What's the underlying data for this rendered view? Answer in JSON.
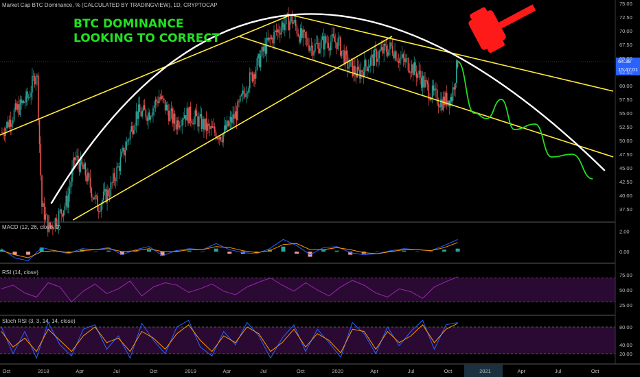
{
  "header": {
    "main": "Market Cap BTC Dominance, % (CALCULATED BY TRADINGVIEW), 1D, CRYPTOCAP",
    "macd": "MACD (12, 26, close, 9)",
    "rsi": "RSI (14, close)",
    "stoch": "Stoch RSI (3, 3, 14, 14, close)"
  },
  "annotation": {
    "line1": "BTC DOMINANCE",
    "line2": "LOOKING TO CORRECT"
  },
  "price_tag": {
    "value": "64.38",
    "countdown": "15:47:01",
    "color": "#2962ff"
  },
  "colors": {
    "up": "#26a69a",
    "down": "#ef5350",
    "trend": "#ffeb3b",
    "arc": "#ffffff",
    "projection": "#22dd22",
    "gavel": "#ff1a1a",
    "rsi": "#9c27b0"
  },
  "chart_data": [
    {
      "type": "candlestick",
      "title": "Market Cap BTC Dominance, % (CALCULATED BY TRADINGVIEW), 1D, CRYPTOCAP",
      "ylim": [
        35,
        75
      ],
      "y_ticks": [
        "75.00",
        "72.50",
        "70.00",
        "67.50",
        "65.00",
        "62.50",
        "60.00",
        "57.50",
        "55.00",
        "52.50",
        "50.00",
        "47.50",
        "45.00",
        "42.50",
        "40.00",
        "37.50"
      ],
      "x_ticks": [
        "Oct",
        "2018",
        "Apr",
        "Jul",
        "Oct",
        "2019",
        "Apr",
        "Jul",
        "Oct",
        "2020",
        "Apr",
        "Jul",
        "Oct",
        "2021",
        "Apr",
        "Jul",
        "Oct"
      ],
      "last": 64.38,
      "path_points": [
        [
          "2017-09-20",
          51.5
        ],
        [
          "2017-10-20",
          55
        ],
        [
          "2017-11-25",
          58
        ],
        [
          "2017-12-15",
          63
        ],
        [
          "2017-12-28",
          38
        ],
        [
          "2018-01-15",
          34
        ],
        [
          "2018-02-05",
          36
        ],
        [
          "2018-03-01",
          39
        ],
        [
          "2018-03-20",
          47
        ],
        [
          "2018-04-15",
          44
        ],
        [
          "2018-05-15",
          38
        ],
        [
          "2018-06-15",
          41
        ],
        [
          "2018-07-15",
          47
        ],
        [
          "2018-08-20",
          55
        ],
        [
          "2018-09-20",
          55
        ],
        [
          "2018-10-15",
          58
        ],
        [
          "2018-11-25",
          53
        ],
        [
          "2018-12-15",
          55
        ],
        [
          "2019-01-15",
          54
        ],
        [
          "2019-02-15",
          52
        ],
        [
          "2019-03-20",
          51
        ],
        [
          "2019-04-25",
          55
        ],
        [
          "2019-05-20",
          60
        ],
        [
          "2019-06-10",
          63
        ],
        [
          "2019-07-05",
          67
        ],
        [
          "2019-08-15",
          71
        ],
        [
          "2019-09-10",
          72
        ],
        [
          "2019-10-01",
          69
        ],
        [
          "2019-11-01",
          67
        ],
        [
          "2019-12-01",
          68
        ],
        [
          "2020-01-01",
          68
        ],
        [
          "2020-01-25",
          64
        ],
        [
          "2020-02-20",
          62
        ],
        [
          "2020-03-15",
          64
        ],
        [
          "2020-04-15",
          66
        ],
        [
          "2020-05-15",
          67
        ],
        [
          "2020-06-01",
          65
        ],
        [
          "2020-06-25",
          64
        ],
        [
          "2020-07-20",
          62
        ],
        [
          "2020-08-15",
          59
        ],
        [
          "2020-09-15",
          57
        ],
        [
          "2020-10-10",
          58
        ],
        [
          "2020-10-25",
          64.38
        ]
      ],
      "projection": [
        [
          "2020-10-25",
          64.38
        ],
        [
          "2020-12-05",
          55
        ],
        [
          "2021-01-05",
          54
        ],
        [
          "2021-02-10",
          57.5
        ],
        [
          "2021-03-15",
          52
        ],
        [
          "2021-05-05",
          53
        ],
        [
          "2021-06-15",
          47
        ],
        [
          "2021-08-05",
          47.5
        ],
        [
          "2021-09-25",
          43
        ]
      ],
      "trendlines": [
        [
          [
            "2017-09-15",
            51
          ],
          [
            "2019-09-10",
            73
          ]
        ],
        [
          [
            "2018-03-15",
            35.5
          ],
          [
            "2020-05-15",
            69
          ]
        ],
        [
          [
            "2019-09-01",
            73
          ],
          [
            "2021-11-15",
            59
          ]
        ],
        [
          [
            "2019-05-01",
            69
          ],
          [
            "2021-11-15",
            47
          ]
        ]
      ],
      "arc": [
        [
          "2018-01-20",
          38.5
        ],
        [
          "2019-09-25",
          73
        ],
        [
          "2021-10-25",
          44.5
        ]
      ]
    },
    {
      "type": "line",
      "title": "MACD (12, 26, close, 9)",
      "ylim": [
        -1,
        2.5
      ],
      "y_ticks": [
        "2.00",
        "0.00"
      ],
      "macd": [
        0.3,
        -0.6,
        -0.9,
        0.4,
        0.1,
        -0.2,
        0.3,
        0.2,
        0.4,
        -0.3,
        0.2,
        0.5,
        -0.4,
        0.1,
        0.3,
        0.2,
        0.8,
        0.2,
        -0.1,
        -0.2,
        0.3,
        1.2,
        0.6,
        -0.3,
        0.4,
        0.5,
        -0.1,
        -0.3,
        -0.2,
        0.1,
        0.3,
        0.2,
        0.1,
        0.6,
        1.2
      ],
      "signal": [
        0.1,
        -0.3,
        -0.6,
        0.0,
        0.1,
        -0.1,
        0.1,
        0.2,
        0.3,
        0.0,
        0.1,
        0.3,
        0.0,
        0.0,
        0.2,
        0.2,
        0.5,
        0.4,
        0.1,
        -0.1,
        0.1,
        0.7,
        0.8,
        0.2,
        0.2,
        0.4,
        0.2,
        -0.1,
        -0.2,
        0.0,
        0.2,
        0.2,
        0.1,
        0.4,
        0.9
      ]
    },
    {
      "type": "line",
      "title": "RSI (14, close)",
      "ylim": [
        10,
        90
      ],
      "y_ticks": [
        "75.00",
        "50.00",
        "25.00"
      ],
      "bands": [
        70,
        30
      ],
      "values": [
        52,
        58,
        45,
        38,
        62,
        55,
        30,
        48,
        60,
        44,
        52,
        65,
        40,
        55,
        62,
        58,
        46,
        52,
        60,
        48,
        42,
        55,
        63,
        70,
        58,
        48,
        62,
        50,
        40,
        55,
        66,
        58,
        45,
        38,
        52,
        47,
        36,
        55,
        64,
        72
      ]
    },
    {
      "type": "line",
      "title": "Stoch RSI (3, 3, 14, 14, close)",
      "ylim": [
        0,
        100
      ],
      "y_ticks": [
        "80.00",
        "40.00",
        "20.00"
      ],
      "bands": [
        80,
        20
      ],
      "k": [
        80,
        20,
        70,
        10,
        90,
        40,
        15,
        75,
        85,
        30,
        60,
        10,
        88,
        50,
        20,
        80,
        95,
        35,
        15,
        70,
        40,
        90,
        60,
        10,
        55,
        85,
        25,
        75,
        45,
        12,
        90,
        65,
        20,
        80,
        38,
        70,
        95,
        30,
        85,
        90
      ],
      "d": [
        70,
        35,
        55,
        25,
        75,
        50,
        25,
        60,
        80,
        45,
        55,
        25,
        70,
        55,
        30,
        65,
        85,
        50,
        25,
        60,
        45,
        80,
        65,
        25,
        45,
        75,
        35,
        65,
        50,
        22,
        75,
        70,
        30,
        70,
        45,
        60,
        85,
        45,
        75,
        88
      ]
    }
  ]
}
